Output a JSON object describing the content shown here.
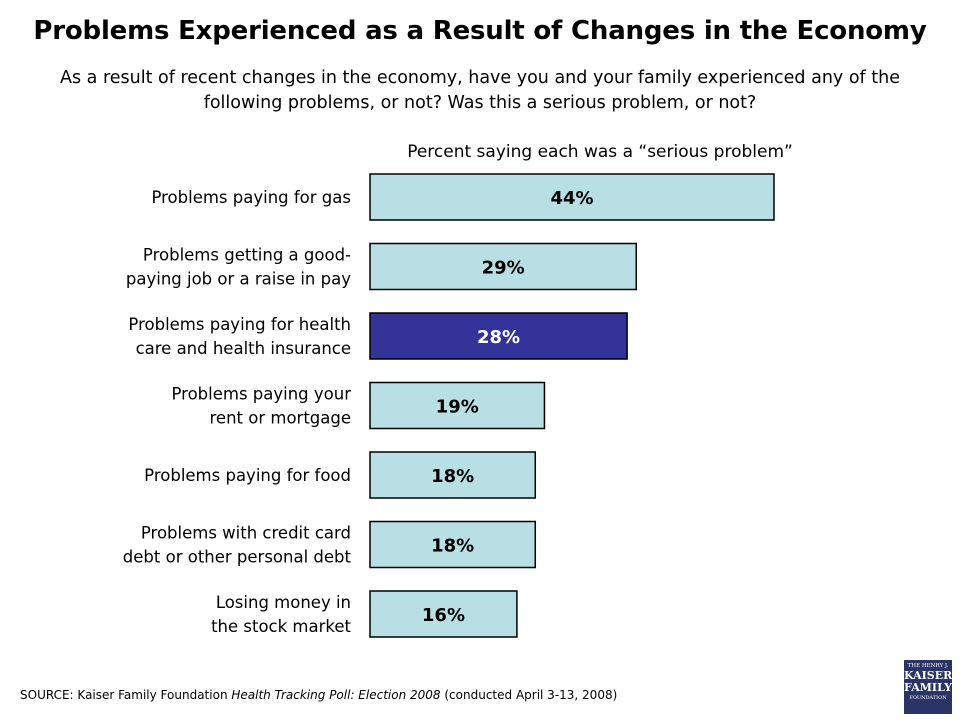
{
  "title": "Problems Experienced as a Result of Changes in the Economy",
  "subtitle": "As a result of recent changes in the economy, have you and your family experienced any of the following problems, or not?  Was this a serious problem, or not?",
  "chart_data": {
    "type": "bar",
    "orientation": "horizontal",
    "title": "Percent saying each was a “serious problem”",
    "categories": [
      [
        "Problems paying for gas"
      ],
      [
        "Problems getting a good-",
        "paying job or a raise in pay"
      ],
      [
        "Problems paying for health",
        "care and health insurance"
      ],
      [
        "Problems paying your",
        "rent or mortgage"
      ],
      [
        "Problems paying for food"
      ],
      [
        "Problems with credit card",
        "debt or other personal debt"
      ],
      [
        "Losing money in",
        "the stock market"
      ]
    ],
    "values": [
      44,
      29,
      28,
      19,
      18,
      18,
      16
    ],
    "value_labels": [
      "44%",
      "29%",
      "28%",
      "19%",
      "18%",
      "18%",
      "16%"
    ],
    "highlight_index": 2,
    "bar_color": "#b8dfe3",
    "highlight_color": "#333399",
    "label_color": "#000000",
    "highlight_label_color": "#ffffff",
    "grid": false,
    "legend": "none"
  },
  "source": {
    "prefix": "SOURCE: Kaiser Family Foundation",
    "publication": "Health Tracking Poll: Election 2008",
    "suffix": "(conducted  April 3-13, 2008)"
  },
  "logo": {
    "line1": "THE HENRY J.",
    "line2": "KAISER",
    "line3": "FAMILY",
    "line4": "FOUNDATION"
  }
}
